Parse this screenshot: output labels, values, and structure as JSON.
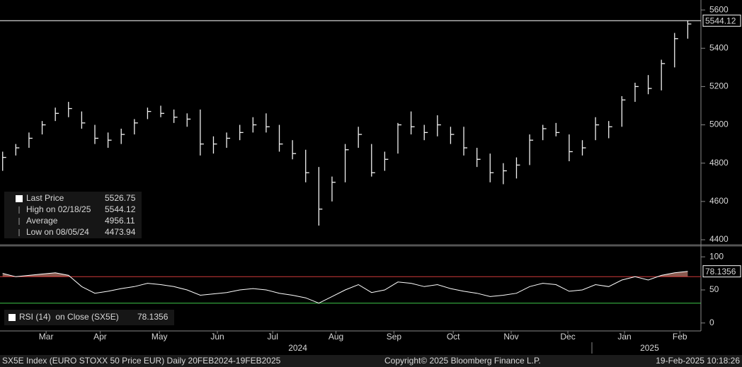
{
  "chart_data": [
    {
      "type": "ohlc",
      "categories": [
        null,
        null,
        null,
        null,
        null,
        null,
        null,
        null,
        null,
        null,
        null,
        null,
        null,
        null,
        null,
        null,
        null,
        null,
        null,
        null,
        null,
        null,
        null,
        null,
        null,
        null,
        null,
        null,
        null,
        null,
        null,
        null,
        null,
        null,
        null,
        null,
        null,
        null,
        null,
        null,
        null,
        null,
        null,
        null,
        null,
        null,
        null,
        null,
        null,
        null,
        null,
        null,
        null
      ],
      "high": [
        4860,
        4900,
        4960,
        5020,
        5090,
        5120,
        5070,
        5000,
        4960,
        4980,
        5030,
        5090,
        5100,
        5080,
        5060,
        5080,
        4940,
        4960,
        5000,
        5040,
        5060,
        5000,
        4920,
        4870,
        4780,
        4730,
        4900,
        4990,
        4900,
        4860,
        5010,
        5070,
        5000,
        5050,
        4990,
        4990,
        4880,
        4850,
        4800,
        4830,
        4950,
        5000,
        5010,
        4950,
        4920,
        5040,
        5020,
        5150,
        5220,
        5260,
        5340,
        5480,
        5544.12
      ],
      "low": [
        4760,
        4840,
        4880,
        4950,
        5020,
        5040,
        4980,
        4900,
        4880,
        4900,
        4950,
        5030,
        5040,
        5010,
        4990,
        4840,
        4850,
        4880,
        4920,
        4960,
        4960,
        4860,
        4820,
        4700,
        4473.94,
        4600,
        4700,
        4880,
        4730,
        4760,
        4850,
        4950,
        4920,
        4940,
        4900,
        4840,
        4780,
        4700,
        4690,
        4720,
        4790,
        4920,
        4940,
        4810,
        4840,
        4920,
        4930,
        4990,
        5120,
        5160,
        5180,
        5300,
        5450
      ],
      "close": [
        4830,
        4880,
        4930,
        5000,
        5060,
        5085,
        5010,
        4930,
        4920,
        4950,
        5010,
        5070,
        5060,
        5040,
        5030,
        4900,
        4900,
        4930,
        4960,
        5000,
        4990,
        4900,
        4850,
        4750,
        4560,
        4700,
        4870,
        4950,
        4750,
        4820,
        5000,
        4990,
        4960,
        5000,
        4950,
        4880,
        4820,
        4750,
        4760,
        4790,
        4920,
        4980,
        4960,
        4860,
        4880,
        5000,
        4990,
        5130,
        5200,
        5190,
        5320,
        5450,
        5526.75
      ],
      "color": "#f2f2f2",
      "ylim": [
        4378,
        5652
      ],
      "yticks": [
        4400,
        4600,
        4800,
        5000,
        5200,
        5400,
        5600
      ],
      "xlim": [
        -0.2,
        53
      ],
      "xticks": [
        {
          "value": 3.3,
          "label": "Mar"
        },
        {
          "value": 7.4,
          "label": "Apr"
        },
        {
          "value": 11.9,
          "label": "May"
        },
        {
          "value": 16.3,
          "label": "Jun"
        },
        {
          "value": 20.5,
          "label": "Jul"
        },
        {
          "value": 25.3,
          "label": "Aug"
        },
        {
          "value": 29.7,
          "label": "Sep"
        },
        {
          "value": 34.2,
          "label": "Oct"
        },
        {
          "value": 38.6,
          "label": "Nov"
        },
        {
          "value": 42.9,
          "label": "Dec"
        },
        {
          "value": 47.2,
          "label": "Jan"
        },
        {
          "value": 51.4,
          "label": "Feb"
        }
      ],
      "year_ticks": [
        {
          "value": 22.4,
          "label": "2024"
        },
        {
          "value": 49.1,
          "label": "2025"
        }
      ],
      "stats": [
        {
          "name": "Last Price",
          "value": 5526.75
        },
        {
          "name": "High on 02/18/25",
          "value": 5544.12
        },
        {
          "name": "Average",
          "value": 4956.11
        },
        {
          "name": "Low on 08/05/24",
          "value": 4473.94
        }
      ],
      "grid": false
    },
    {
      "type": "line",
      "series": [
        {
          "name": "RSI (14)  on Close (SX5E)",
          "color": "#ffffff",
          "values": [
            75,
            70,
            72,
            74,
            76,
            72,
            55,
            45,
            48,
            52,
            55,
            60,
            58,
            55,
            50,
            42,
            44,
            46,
            50,
            52,
            50,
            45,
            42,
            38,
            30,
            40,
            50,
            58,
            46,
            50,
            62,
            60,
            55,
            58,
            52,
            48,
            45,
            40,
            42,
            45,
            55,
            60,
            58,
            48,
            50,
            58,
            55,
            65,
            70,
            65,
            72,
            76,
            78.1356
          ]
        }
      ],
      "overbought_fill": "#8a5a50",
      "reference_lines": [
        {
          "value": 70,
          "color": "#d03a3a"
        },
        {
          "value": 30,
          "color": "#3ec84a"
        }
      ],
      "ylim": [
        -12,
        112
      ],
      "yticks": [
        0,
        50,
        100
      ]
    }
  ],
  "footer": {
    "left": "SX5E Index (EURO STOXX 50 Price EUR)  Daily 20FEB2024-19FEB2025",
    "center": "Copyright© 2025 Bloomberg Finance L.P.",
    "right": "19-Feb-2025 10:18:26"
  }
}
